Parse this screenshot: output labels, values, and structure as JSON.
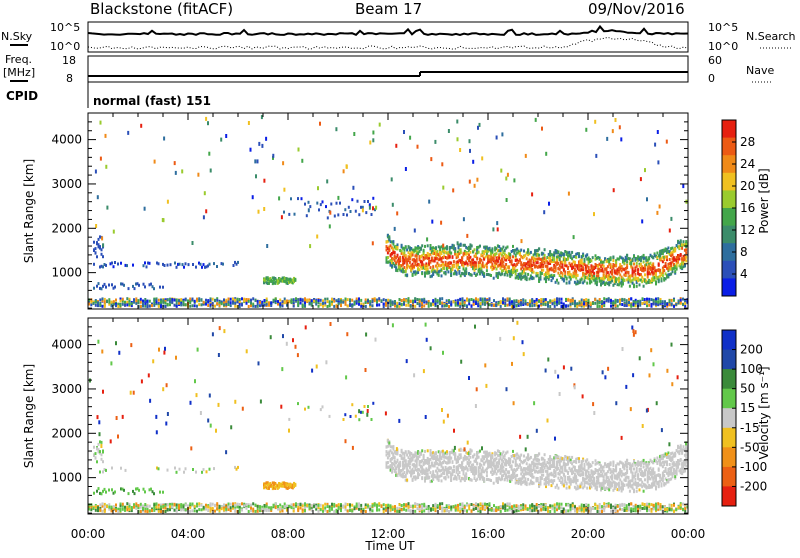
{
  "header": {
    "title": "Blackstone (fitACF)",
    "beam": "Beam 17",
    "date": "09/Nov/2016"
  },
  "top_panels": {
    "nsky_label": "N.Sky",
    "nsky_top": "10^5",
    "nsky_bottom": "10^0",
    "nsearch_label": "N.Search",
    "nsearch_top": "10^5",
    "nsearch_bottom": "10^0",
    "freq_label_1": "Freq.",
    "freq_label_2": "[MHz]",
    "freq_top": "18",
    "freq_bottom": "8",
    "nave_label": "Nave",
    "nave_top": "60",
    "nave_bottom": "0",
    "cpid_label": "CPID",
    "cpid_value": "normal (fast) 151"
  },
  "colors": {
    "power_scale": [
      "#0a1ee6",
      "#2b4fb8",
      "#2e6e9e",
      "#3b8c6a",
      "#43a64a",
      "#9acb2e",
      "#f0c020",
      "#f08a18",
      "#ec5a14",
      "#e62010"
    ],
    "velocity_scale": [
      "#1030c8",
      "#2048a8",
      "#3a8a3a",
      "#62c84a",
      "#c8c8c8",
      "#f0c020",
      "#f09018",
      "#ec6014",
      "#e62010"
    ]
  },
  "chart_data": [
    {
      "type": "heatmap",
      "name": "power",
      "ylabel": "Slant Range [km]",
      "xlabel": "Time UT",
      "x_ticks": [
        "00:00",
        "04:00",
        "08:00",
        "12:00",
        "16:00",
        "20:00",
        "00:00"
      ],
      "y_ticks": [
        "1000",
        "2000",
        "3000",
        "4000"
      ],
      "ylim": [
        180,
        4600
      ],
      "colorbar_label": "Power [dB]",
      "colorbar_ticks": [
        "4",
        "8",
        "12",
        "16",
        "20",
        "24",
        "28"
      ]
    },
    {
      "type": "heatmap",
      "name": "velocity",
      "ylabel": "Slant Range [km]",
      "xlabel": "Time UT",
      "x_ticks": [
        "00:00",
        "04:00",
        "08:00",
        "12:00",
        "16:00",
        "20:00",
        "00:00"
      ],
      "y_ticks": [
        "1000",
        "2000",
        "3000",
        "4000"
      ],
      "ylim": [
        180,
        4600
      ],
      "colorbar_label": "Velocity [m s⁻¹]",
      "colorbar_ticks": [
        "200",
        "100",
        "50",
        "15",
        "-15",
        "-50",
        "-100",
        "-200"
      ]
    }
  ],
  "axis": {
    "time_label": "Time UT"
  }
}
